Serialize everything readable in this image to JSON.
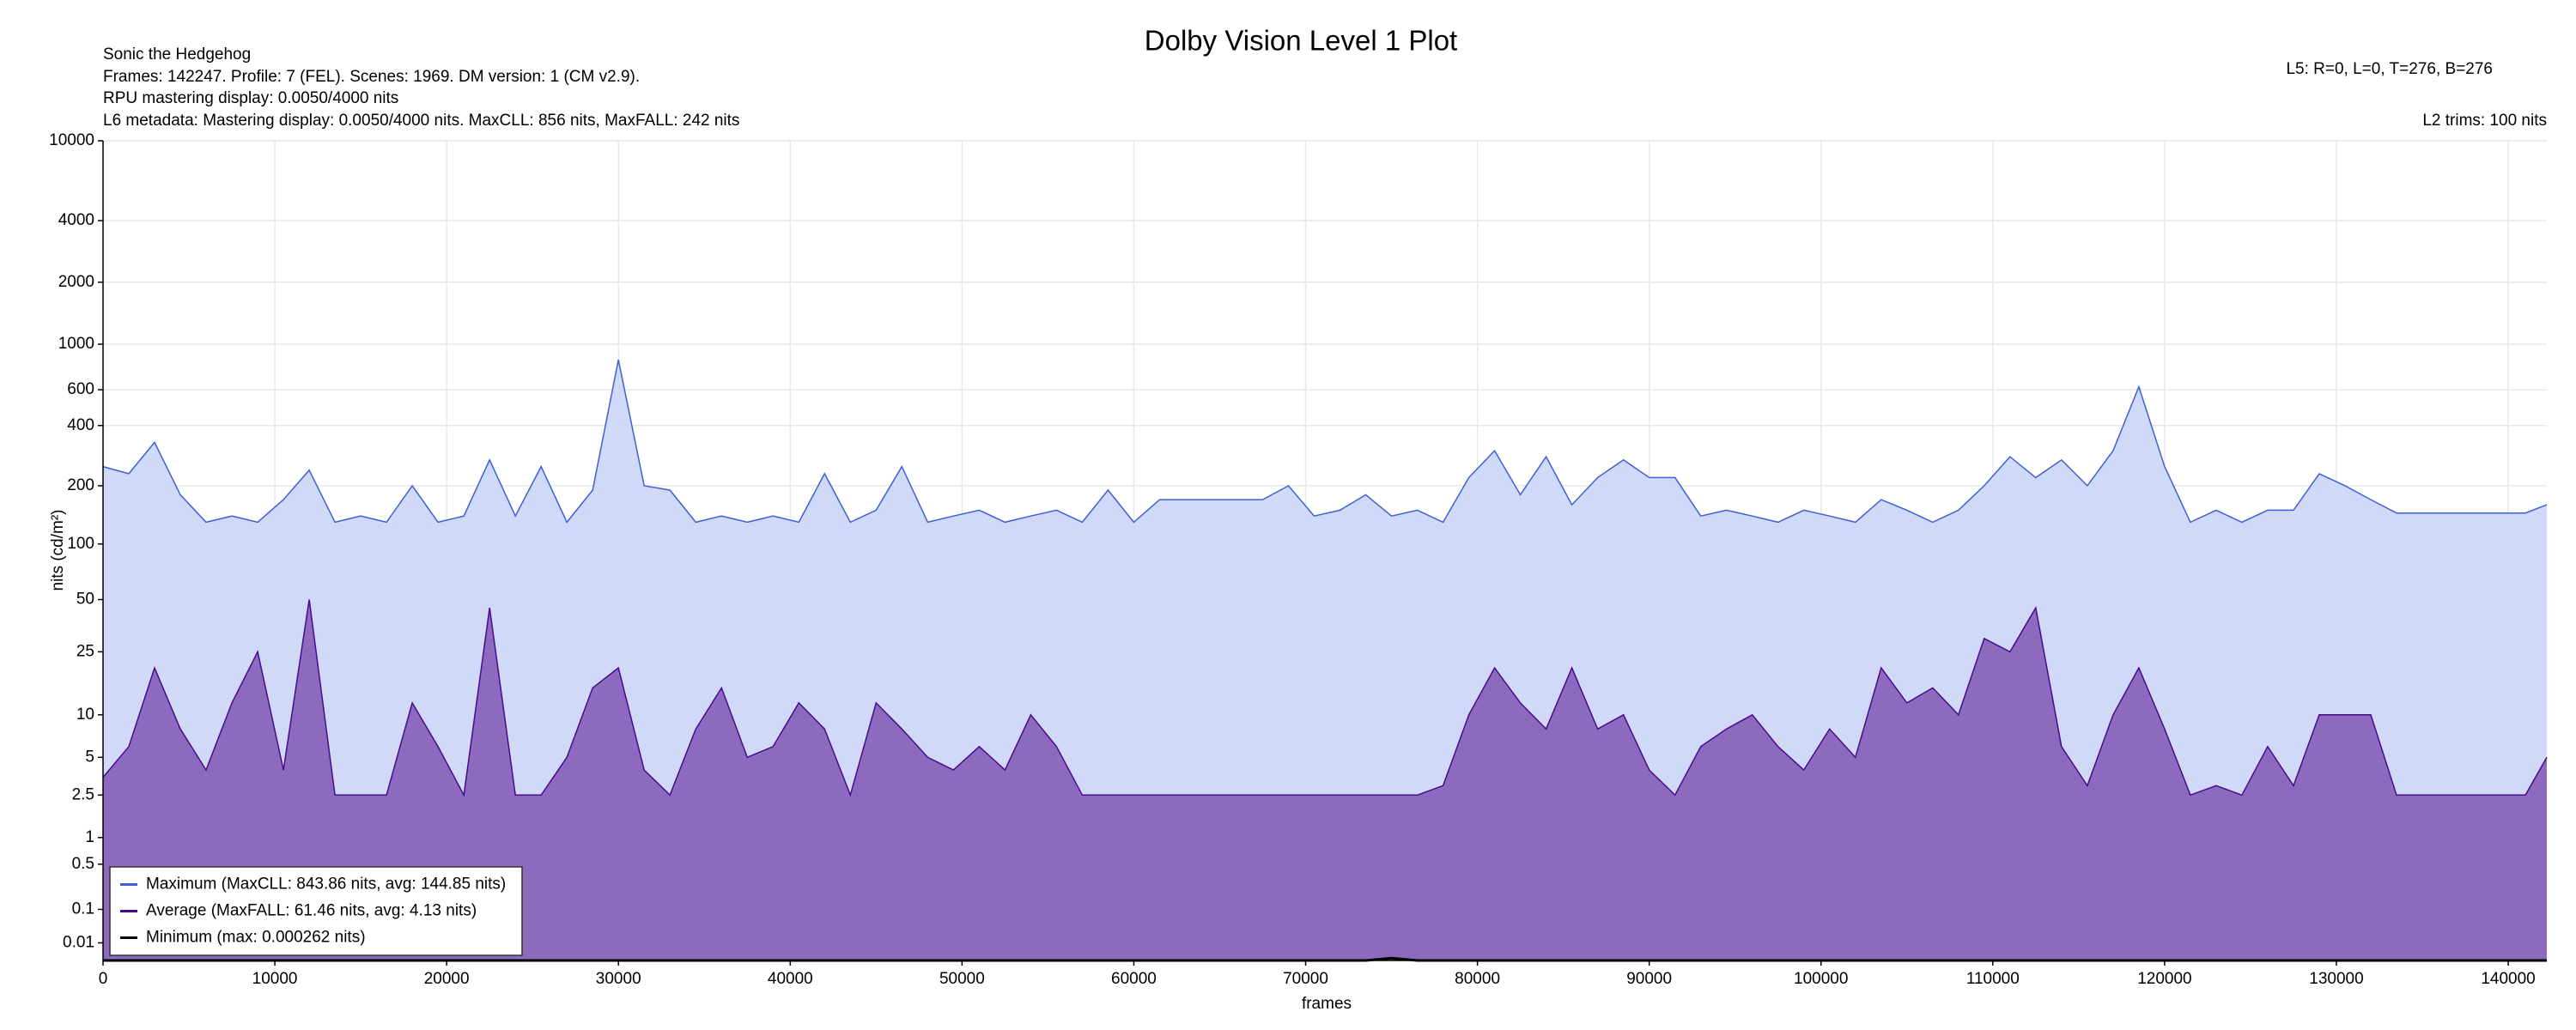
{
  "chart_data": {
    "type": "area",
    "title": "Dolby Vision Level 1 Plot",
    "info_left": [
      "Sonic the Hedgehog",
      "Frames: 142247. Profile: 7 (FEL). Scenes: 1969. DM version: 1 (CM v2.9).",
      "RPU mastering display: 0.0050/4000 nits",
      "L6 metadata: Mastering display: 0.0050/4000 nits. MaxCLL: 856 nits, MaxFALL: 242 nits"
    ],
    "info_right": [
      "L5: R=0, L=0, T=276, B=276",
      "L2 trims: 100 nits"
    ],
    "x_label": "frames",
    "y_label": "nits (cd/m²)",
    "yscale": "pq",
    "grid": true,
    "legend": "lower left",
    "xlim": [
      0,
      142247
    ],
    "ylim": [
      0,
      10000
    ],
    "xticks": [
      0,
      10000,
      20000,
      30000,
      40000,
      50000,
      60000,
      70000,
      80000,
      90000,
      100000,
      110000,
      120000,
      130000,
      140000
    ],
    "yticks": [
      0.01,
      0.1,
      0.5,
      1,
      2.5,
      5,
      10,
      25,
      50,
      100,
      200,
      400,
      600,
      1000,
      2000,
      4000,
      10000
    ],
    "x": [
      0,
      1500,
      3000,
      4500,
      6000,
      7500,
      9000,
      10500,
      12000,
      13500,
      15000,
      16500,
      18000,
      19500,
      21000,
      22500,
      24000,
      25500,
      27000,
      28500,
      30000,
      31500,
      33000,
      34500,
      36000,
      37500,
      39000,
      40500,
      42000,
      43500,
      45000,
      46500,
      48000,
      49500,
      51000,
      52500,
      54000,
      55500,
      57000,
      58500,
      60000,
      61500,
      63000,
      64500,
      66000,
      67500,
      69000,
      70500,
      72000,
      73500,
      75000,
      76500,
      78000,
      79500,
      81000,
      82500,
      84000,
      85500,
      87000,
      88500,
      90000,
      91500,
      93000,
      94500,
      96000,
      97500,
      99000,
      100500,
      102000,
      103500,
      105000,
      106500,
      108000,
      109500,
      111000,
      112500,
      114000,
      115500,
      117000,
      118500,
      120000,
      121500,
      123000,
      124500,
      126000,
      127500,
      129000,
      130500,
      132000,
      133500,
      135000,
      136500,
      138000,
      139500,
      141000,
      142247
    ],
    "series": [
      {
        "name": "Maximum (MaxCLL: 843.86 nits, avg: 144.85 nits)",
        "color": "#3d5fd8",
        "fill": "#d0d9f7",
        "values": [
          250,
          230,
          330,
          180,
          130,
          140,
          130,
          170,
          240,
          130,
          140,
          130,
          200,
          130,
          140,
          270,
          140,
          250,
          130,
          190,
          840,
          200,
          190,
          130,
          140,
          130,
          140,
          130,
          230,
          130,
          150,
          250,
          130,
          140,
          150,
          130,
          140,
          150,
          130,
          190,
          130,
          170,
          170,
          170,
          170,
          170,
          200,
          140,
          150,
          180,
          140,
          150,
          130,
          220,
          300,
          180,
          280,
          160,
          220,
          270,
          220,
          220,
          140,
          150,
          140,
          130,
          150,
          140,
          130,
          170,
          150,
          130,
          150,
          200,
          280,
          220,
          270,
          200,
          300,
          620,
          250,
          130,
          150,
          130,
          150,
          150,
          230,
          200,
          170,
          145,
          145,
          145,
          145,
          145,
          145,
          160
        ]
      },
      {
        "name": "Average (MaxFALL: 61.46 nits, avg: 4.13 nits)",
        "color": "#4b0a8c",
        "fill": "#8c6bbf",
        "values": [
          3.5,
          6,
          20,
          8,
          4,
          12,
          25,
          4,
          50,
          2.5,
          2.5,
          2.5,
          12,
          6,
          2.5,
          45,
          2.5,
          2.5,
          5,
          15,
          20,
          4,
          2.5,
          8,
          15,
          5,
          6,
          12,
          8,
          2.5,
          12,
          8,
          5,
          4,
          6,
          4,
          10,
          6,
          2.5,
          2.5,
          2.5,
          2.5,
          2.5,
          2.5,
          2.5,
          2.5,
          2.5,
          2.5,
          2.5,
          2.5,
          2.5,
          2.5,
          3,
          10,
          20,
          12,
          8,
          20,
          8,
          10,
          4,
          2.5,
          6,
          8,
          10,
          6,
          4,
          8,
          5,
          20,
          12,
          15,
          10,
          30,
          25,
          45,
          6,
          3,
          10,
          20,
          8,
          2.5,
          3,
          2.5,
          6,
          3,
          10,
          10,
          10,
          2.5,
          2.5,
          2.5,
          2.5,
          2.5,
          2.5,
          5
        ]
      },
      {
        "name": "Minimum (max: 0.000262 nits)",
        "color": "#000000",
        "fill": "none",
        "values": [
          0,
          0,
          0,
          0,
          0,
          0,
          0,
          0,
          0,
          0,
          0,
          0,
          0,
          0,
          0,
          0,
          0,
          0,
          0,
          0,
          0,
          0,
          0,
          0,
          0,
          0,
          0,
          0,
          0,
          0,
          0,
          0,
          0,
          0,
          0,
          0,
          0,
          0,
          0,
          0,
          0,
          0,
          0,
          0,
          0,
          0,
          0,
          0,
          0,
          0,
          0.000262,
          0,
          0,
          0,
          0,
          0,
          0,
          0,
          0,
          0,
          0,
          0,
          0,
          0,
          0,
          0,
          0,
          0,
          0,
          0,
          0,
          0,
          0,
          0,
          0,
          0,
          0,
          0,
          0,
          0,
          0,
          0,
          0,
          0,
          0,
          0,
          0,
          0,
          0,
          0,
          0,
          0,
          0,
          0,
          0,
          0
        ]
      }
    ]
  }
}
